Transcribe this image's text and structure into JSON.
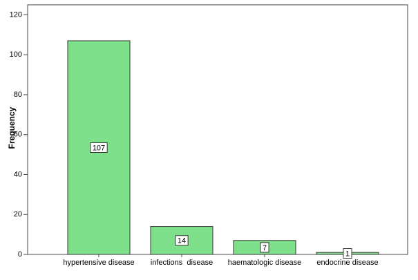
{
  "chart_data": {
    "type": "bar",
    "y_label": "Frequency",
    "categories": [
      "hypertensive disease",
      "infections  disease",
      "haematologic disease",
      "endocrine disease"
    ],
    "values": [
      107,
      14,
      7,
      1
    ],
    "color": "#7ee08a",
    "ylim": [
      0,
      125
    ],
    "yticks": [
      0,
      20,
      40,
      60,
      80,
      100,
      120
    ],
    "grid": false
  }
}
